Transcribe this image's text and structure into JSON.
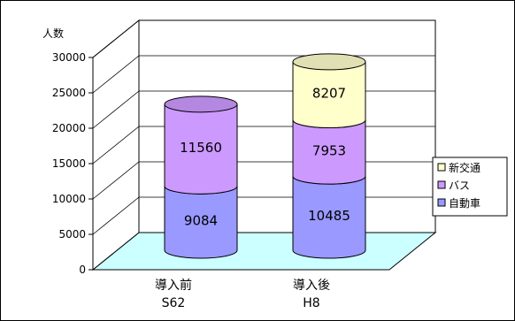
{
  "chart_data": {
    "type": "bar",
    "stacked": true,
    "three_d": true,
    "ylabel": "人数",
    "ylim": [
      0,
      30000
    ],
    "yticks": [
      0,
      5000,
      10000,
      15000,
      20000,
      25000,
      30000
    ],
    "grid": true,
    "legend_position": "right",
    "categories": [
      {
        "line1": "導入前",
        "line2": "S62"
      },
      {
        "line1": "導入後",
        "line2": "H8"
      }
    ],
    "series": [
      {
        "name": "自動車",
        "values": [
          9084,
          10485
        ],
        "color": "#9999ff"
      },
      {
        "name": "バス",
        "values": [
          11560,
          7953
        ],
        "color": "#cc99ff"
      },
      {
        "name": "新交通",
        "values": [
          0,
          8207
        ],
        "color": "#ffffcc"
      }
    ],
    "floor_color": "#ccffff"
  }
}
